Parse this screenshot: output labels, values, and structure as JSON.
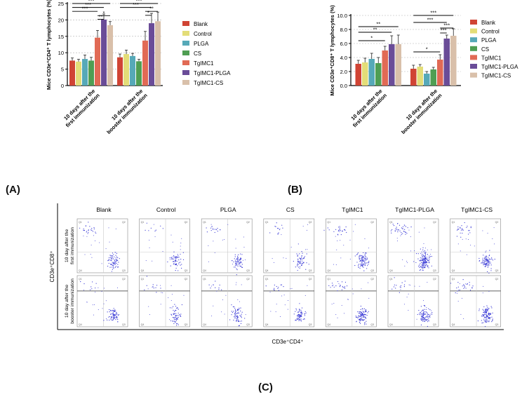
{
  "colors": {
    "Blank": "#d04434",
    "Control": "#e3dd78",
    "PLGA": "#56a9b8",
    "CS": "#4f9e53",
    "TgIMC1": "#e16a55",
    "TgIMC1-PLGA": "#6a4c98",
    "TgIMC1-CS": "#d9c0aa",
    "dot": "#3b3bd6"
  },
  "panel_labels": {
    "A": "(A)",
    "B": "(B)",
    "C": "(C)"
  },
  "chart_data": [
    {
      "type": "bar",
      "title": "",
      "ylabel": "Mice CD3e⁺CD4⁺ T lymphocytes (%)",
      "ylim": [
        0,
        25
      ],
      "yticks": [
        0,
        5,
        10,
        15,
        20,
        25
      ],
      "categories": [
        "10 days after the\nfirst immunization",
        "10 days after the\nbooster immunization"
      ],
      "series": [
        {
          "name": "Blank",
          "values": [
            7.6,
            8.6
          ],
          "errors": [
            0.8,
            1.0
          ]
        },
        {
          "name": "Control",
          "values": [
            7.3,
            9.6
          ],
          "errors": [
            0.7,
            1.2
          ]
        },
        {
          "name": "PLGA",
          "values": [
            8.1,
            9.0
          ],
          "errors": [
            1.2,
            0.8
          ]
        },
        {
          "name": "CS",
          "values": [
            7.6,
            7.4
          ],
          "errors": [
            1.0,
            0.6
          ]
        },
        {
          "name": "TgIMC1",
          "values": [
            14.6,
            13.7
          ],
          "errors": [
            2.2,
            2.8
          ]
        },
        {
          "name": "TgIMC1-PLGA",
          "values": [
            20.1,
            19.0
          ],
          "errors": [
            1.7,
            3.0
          ]
        },
        {
          "name": "TgIMC1-CS",
          "values": [
            18.4,
            19.6
          ],
          "errors": [
            1.1,
            2.8
          ]
        }
      ],
      "significance": [
        {
          "group": 0,
          "from": 0,
          "to": 6,
          "label": "***",
          "level": 25.0
        },
        {
          "group": 0,
          "from": 0,
          "to": 5,
          "label": "***",
          "level": 23.8
        },
        {
          "group": 0,
          "from": 0,
          "to": 4,
          "label": "***",
          "level": 22.6
        },
        {
          "group": 0,
          "from": 4,
          "to": 6,
          "label": "*",
          "level": 21.3
        },
        {
          "group": 0,
          "from": 4,
          "to": 5,
          "label": "**",
          "level": 20.2
        },
        {
          "group": 1,
          "from": 0,
          "to": 6,
          "label": "***",
          "level": 25.0
        },
        {
          "group": 1,
          "from": 0,
          "to": 5,
          "label": "***",
          "level": 23.8
        },
        {
          "group": 1,
          "from": 4,
          "to": 6,
          "label": "**",
          "level": 22.6
        },
        {
          "group": 1,
          "from": 4,
          "to": 5,
          "label": "*",
          "level": 21.4
        }
      ],
      "legend": [
        "Blank",
        "Control",
        "PLGA",
        "CS",
        "TgIMC1",
        "TgIMC1-PLGA",
        "TgIMC1-CS"
      ]
    },
    {
      "type": "bar",
      "title": "",
      "ylabel": "Mice CD3e⁺CD8⁺ T lymphocytes (%)",
      "ylim": [
        0,
        10
      ],
      "yticks": [
        "0.0",
        "2.0",
        "4.0",
        "6.0",
        "8.0",
        "10.0"
      ],
      "categories": [
        "10 days after the\nfirst immunization",
        "10 days after the\nbooster immunization"
      ],
      "series": [
        {
          "name": "Blank",
          "values": [
            3.1,
            2.4
          ],
          "errors": [
            0.5,
            0.5
          ]
        },
        {
          "name": "Control",
          "values": [
            3.3,
            2.7
          ],
          "errors": [
            0.6,
            0.3
          ]
        },
        {
          "name": "PLGA",
          "values": [
            3.8,
            1.7
          ],
          "errors": [
            0.8,
            0.3
          ]
        },
        {
          "name": "CS",
          "values": [
            3.2,
            2.3
          ],
          "errors": [
            0.8,
            0.3
          ]
        },
        {
          "name": "TgIMC1",
          "values": [
            5.0,
            3.7
          ],
          "errors": [
            0.6,
            0.7
          ]
        },
        {
          "name": "TgIMC1-PLGA",
          "values": [
            5.9,
            6.7
          ],
          "errors": [
            1.2,
            0.5
          ]
        },
        {
          "name": "TgIMC1-CS",
          "values": [
            5.9,
            7.1
          ],
          "errors": [
            1.3,
            1.0
          ]
        }
      ],
      "significance": [
        {
          "group": 0,
          "from": 0,
          "to": 6,
          "label": "**",
          "level": 8.4
        },
        {
          "group": 0,
          "from": 0,
          "to": 5,
          "label": "**",
          "level": 7.6
        },
        {
          "group": 0,
          "from": 0,
          "to": 4,
          "label": "*",
          "level": 6.4
        },
        {
          "group": 1,
          "from": 0,
          "to": 6,
          "label": "***",
          "level": 10.0
        },
        {
          "group": 1,
          "from": 0,
          "to": 5,
          "label": "***",
          "level": 9.0
        },
        {
          "group": 1,
          "from": 4,
          "to": 6,
          "label": "***",
          "level": 8.2
        },
        {
          "group": 1,
          "from": 4,
          "to": 5,
          "label": "***",
          "level": 7.5
        },
        {
          "group": 1,
          "from": 0,
          "to": 4,
          "label": "*",
          "level": 4.8
        }
      ],
      "legend": [
        "Blank",
        "Control",
        "PLGA",
        "CS",
        "TgIMC1",
        "TgIMC1-PLGA",
        "TgIMC1-CS"
      ]
    },
    {
      "type": "scatter",
      "title": "",
      "xlabel": "CD3e⁺CD4⁺",
      "ylabel": "CD3e⁺CD8⁺",
      "columns": [
        "Blank",
        "Control",
        "PLGA",
        "CS",
        "TgIMC1",
        "TgIMC1-PLGA",
        "TgIMC1-CS"
      ],
      "row_labels": [
        "10 day after the\nfirst immunization",
        "10 day after the\nbooster immunization"
      ],
      "quadrant_labels": [
        "Q1",
        "Q2",
        "Q3",
        "Q4"
      ],
      "cluster_density": [
        [
          {
            "cd8": 20,
            "cd4": 70,
            "scatter": 18
          },
          {
            "cd8": 8,
            "cd4": 60,
            "scatter": 14
          },
          {
            "cd8": 16,
            "cd4": 62,
            "scatter": 16
          },
          {
            "cd8": 12,
            "cd4": 56,
            "scatter": 12
          },
          {
            "cd8": 22,
            "cd4": 95,
            "scatter": 16
          },
          {
            "cd8": 35,
            "cd4": 150,
            "scatter": 20
          },
          {
            "cd8": 25,
            "cd4": 90,
            "scatter": 16
          }
        ],
        [
          {
            "cd8": 8,
            "cd4": 70,
            "scatter": 16
          },
          {
            "cd8": 10,
            "cd4": 60,
            "scatter": 14
          },
          {
            "cd8": 10,
            "cd4": 70,
            "scatter": 14
          },
          {
            "cd8": 12,
            "cd4": 70,
            "scatter": 14
          },
          {
            "cd8": 20,
            "cd4": 100,
            "scatter": 16
          },
          {
            "cd8": 14,
            "cd4": 95,
            "scatter": 16
          },
          {
            "cd8": 22,
            "cd4": 110,
            "scatter": 14
          }
        ]
      ]
    }
  ]
}
